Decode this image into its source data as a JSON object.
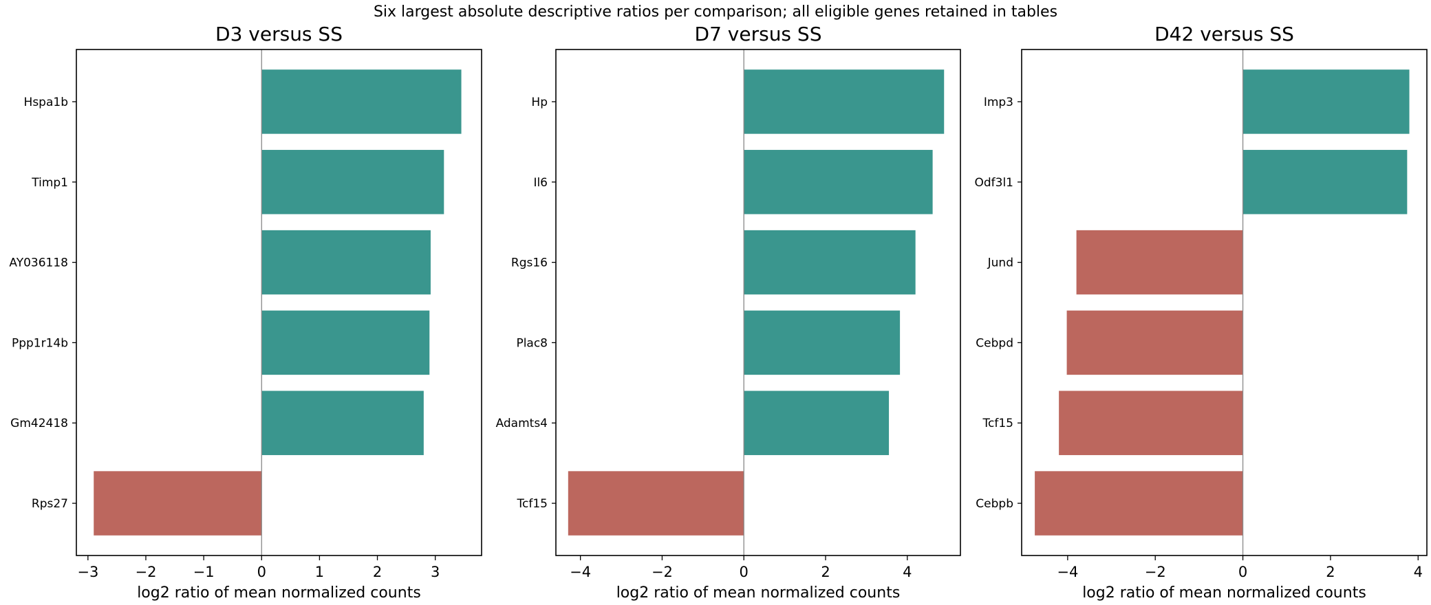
{
  "suptitle": "Six largest absolute descriptive ratios per comparison; all eligible genes retained in tables",
  "colors": {
    "positive": "#3a968e",
    "negative": "#bc675e",
    "zero_line": "#888888"
  },
  "chart_data": [
    {
      "type": "bar",
      "orientation": "horizontal",
      "title": "D3 versus SS",
      "xlabel": "log2 ratio of mean normalized counts",
      "categories": [
        "Hspa1b",
        "Timp1",
        "AY036118",
        "Ppp1r14b",
        "Gm42418",
        "Rps27"
      ],
      "values": [
        3.45,
        3.15,
        2.92,
        2.9,
        2.8,
        -2.9
      ],
      "xticks": [
        -3,
        -2,
        -1,
        0,
        1,
        2,
        3
      ],
      "xlim": [
        -3.2,
        3.8
      ]
    },
    {
      "type": "bar",
      "orientation": "horizontal",
      "title": "D7 versus SS",
      "xlabel": "log2 ratio of mean normalized counts",
      "categories": [
        "Hp",
        "Il6",
        "Rgs16",
        "Plac8",
        "Adamts4",
        "Tcf15"
      ],
      "values": [
        4.9,
        4.62,
        4.2,
        3.82,
        3.55,
        -4.3
      ],
      "xticks": [
        -4,
        -2,
        0,
        2,
        4
      ],
      "xlim": [
        -4.6,
        5.3
      ]
    },
    {
      "type": "bar",
      "orientation": "horizontal",
      "title": "D42 versus SS",
      "xlabel": "log2 ratio of mean normalized counts",
      "categories": [
        "Imp3",
        "Odf3l1",
        "Jund",
        "Cebpd",
        "Tcf15",
        "Cebpb"
      ],
      "values": [
        3.8,
        3.75,
        -3.8,
        -4.02,
        -4.2,
        -4.75
      ],
      "xticks": [
        -4,
        -2,
        0,
        2,
        4
      ],
      "xlim": [
        -5.05,
        4.2
      ]
    }
  ]
}
